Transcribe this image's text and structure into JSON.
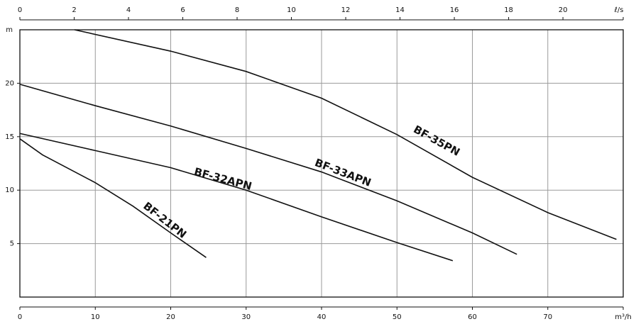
{
  "chart_data": {
    "type": "line",
    "x_label": "m³/h",
    "x2_label": "ℓ/s",
    "y_label": "m",
    "xlim": [
      0,
      80
    ],
    "xticks": [
      0,
      10,
      20,
      30,
      40,
      50,
      60,
      70
    ],
    "x2lim": [
      0,
      22.22
    ],
    "x2ticks": [
      0,
      2,
      4,
      6,
      8,
      10,
      12,
      14,
      16,
      18,
      20
    ],
    "ylim": [
      0,
      25
    ],
    "yticks": [
      5,
      10,
      15,
      20
    ],
    "grid": true,
    "series": [
      {
        "name": "BF-35PN",
        "color": "#111111",
        "x": [
          7.25,
          20,
          30,
          40,
          50,
          60,
          70,
          79.1
        ],
        "values": [
          25,
          23,
          21.1,
          18.6,
          15.2,
          11.2,
          7.9,
          5.4
        ]
      },
      {
        "name": "BF-33APN",
        "color": "#111111",
        "x": [
          0,
          10,
          20,
          30,
          40,
          50,
          60,
          65.9
        ],
        "values": [
          19.9,
          17.9,
          16.0,
          13.9,
          11.7,
          9.0,
          6.0,
          4.0
        ]
      },
      {
        "name": "BF-32APN",
        "color": "#111111",
        "x": [
          0,
          10,
          20,
          30,
          40,
          50,
          57.4
        ],
        "values": [
          15.3,
          13.7,
          12.1,
          10.0,
          7.5,
          5.1,
          3.4
        ]
      },
      {
        "name": "BF-21PN",
        "color": "#111111",
        "x": [
          0,
          3,
          10,
          15,
          20,
          24.7
        ],
        "values": [
          14.8,
          13.3,
          10.7,
          8.5,
          6.0,
          3.7
        ]
      }
    ]
  }
}
